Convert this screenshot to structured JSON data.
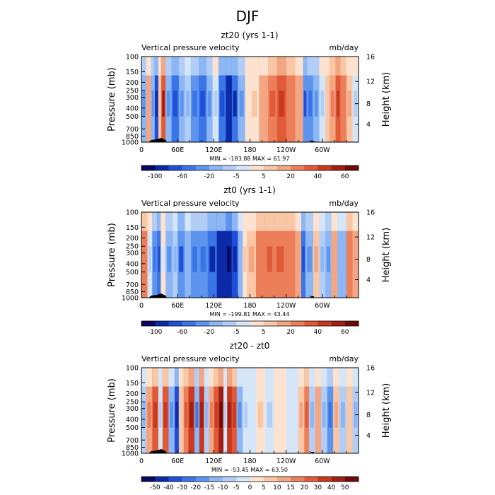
{
  "main_title": "DJF",
  "chart_data": [
    {
      "type": "heatmap",
      "title": "zt20 (yrs 1-1)",
      "left_label": "Vertical pressure velocity",
      "units": "mb/day",
      "ylabel": "Pressure (mb)",
      "y2label": "Height (km)",
      "yticks": [
        "100",
        "150",
        "200",
        "250",
        "300",
        "400",
        "500",
        "700",
        "850",
        "1000"
      ],
      "y2ticks": [
        "16",
        "12",
        "8",
        "4"
      ],
      "xticks": [
        "0",
        "60E",
        "120E",
        "180",
        "120W",
        "60W"
      ],
      "stats": "MIN = -183.88   MAX =  61.97",
      "colorbar_labels": [
        "-100",
        "-60",
        "-20",
        "-5",
        "5",
        "20",
        "40",
        "60"
      ],
      "colorbar_colors": [
        "#08085c",
        "#0c2aa8",
        "#1f4fd8",
        "#3a75e8",
        "#5d95ee",
        "#8cb6f4",
        "#b3cef6",
        "#d6e6f9",
        "#fde3cf",
        "#f9c6a6",
        "#f4a582",
        "#ec7e5a",
        "#e05a38",
        "#c9391f",
        "#a01e12",
        "#6d0a0a"
      ],
      "columns": [
        {
          "x0": 0,
          "x1": 8,
          "v": -30
        },
        {
          "x0": 8,
          "x1": 16,
          "v": 12
        },
        {
          "x0": 16,
          "x1": 22,
          "v": -40
        },
        {
          "x0": 22,
          "x1": 28,
          "v": -90
        },
        {
          "x0": 28,
          "x1": 33,
          "v": 5
        },
        {
          "x0": 33,
          "x1": 40,
          "v": 38
        },
        {
          "x0": 40,
          "x1": 50,
          "v": -30
        },
        {
          "x0": 50,
          "x1": 62,
          "v": -65
        },
        {
          "x0": 62,
          "x1": 72,
          "v": -35
        },
        {
          "x0": 72,
          "x1": 82,
          "v": -15
        },
        {
          "x0": 82,
          "x1": 95,
          "v": -45
        },
        {
          "x0": 95,
          "x1": 108,
          "v": -70
        },
        {
          "x0": 108,
          "x1": 118,
          "v": -40
        },
        {
          "x0": 118,
          "x1": 128,
          "v": -8
        },
        {
          "x0": 128,
          "x1": 140,
          "v": -70
        },
        {
          "x0": 140,
          "x1": 150,
          "v": -110
        },
        {
          "x0": 150,
          "x1": 160,
          "v": -80
        },
        {
          "x0": 160,
          "x1": 172,
          "v": -30
        },
        {
          "x0": 172,
          "x1": 180,
          "v": 3
        },
        {
          "x0": 180,
          "x1": 195,
          "v": 4
        },
        {
          "x0": 195,
          "x1": 210,
          "v": 12
        },
        {
          "x0": 210,
          "x1": 225,
          "v": 25
        },
        {
          "x0": 225,
          "x1": 240,
          "v": 30
        },
        {
          "x0": 240,
          "x1": 255,
          "v": 22
        },
        {
          "x0": 255,
          "x1": 268,
          "v": 10
        },
        {
          "x0": 268,
          "x1": 275,
          "v": -60
        },
        {
          "x0": 275,
          "x1": 285,
          "v": -50
        },
        {
          "x0": 285,
          "x1": 295,
          "v": -35
        },
        {
          "x0": 295,
          "x1": 305,
          "v": -10
        },
        {
          "x0": 305,
          "x1": 312,
          "v": 5
        },
        {
          "x0": 312,
          "x1": 322,
          "v": 15
        },
        {
          "x0": 322,
          "x1": 330,
          "v": 35
        },
        {
          "x0": 330,
          "x1": 340,
          "v": 22
        },
        {
          "x0": 340,
          "x1": 350,
          "v": 8
        },
        {
          "x0": 350,
          "x1": 360,
          "v": -10
        }
      ]
    },
    {
      "type": "heatmap",
      "title": "zt0 (yrs 1-1)",
      "left_label": "Vertical pressure velocity",
      "units": "mb/day",
      "ylabel": "Pressure (mb)",
      "y2label": "Height (km)",
      "yticks": [
        "100",
        "150",
        "200",
        "250",
        "300",
        "400",
        "500",
        "700",
        "850",
        "1000"
      ],
      "y2ticks": [
        "16",
        "12",
        "8",
        "4"
      ],
      "xticks": [
        "0",
        "60E",
        "120E",
        "180",
        "120W",
        "60W"
      ],
      "stats": "MIN = -199.81   MAX =  43.44",
      "colorbar_labels": [
        "-100",
        "-60",
        "-20",
        "-5",
        "5",
        "20",
        "40",
        "60"
      ],
      "colorbar_colors": [
        "#08085c",
        "#0c2aa8",
        "#1f4fd8",
        "#3a75e8",
        "#5d95ee",
        "#8cb6f4",
        "#b3cef6",
        "#d6e6f9",
        "#fde3cf",
        "#f9c6a6",
        "#f4a582",
        "#ec7e5a",
        "#e05a38",
        "#c9391f",
        "#a01e12",
        "#6d0a0a"
      ],
      "columns": [
        {
          "x0": 0,
          "x1": 10,
          "v": 20
        },
        {
          "x0": 10,
          "x1": 18,
          "v": -10
        },
        {
          "x0": 18,
          "x1": 26,
          "v": -45
        },
        {
          "x0": 26,
          "x1": 32,
          "v": -70
        },
        {
          "x0": 32,
          "x1": 40,
          "v": -5
        },
        {
          "x0": 40,
          "x1": 52,
          "v": -30
        },
        {
          "x0": 52,
          "x1": 60,
          "v": -15
        },
        {
          "x0": 60,
          "x1": 72,
          "v": -60
        },
        {
          "x0": 72,
          "x1": 82,
          "v": -25
        },
        {
          "x0": 82,
          "x1": 95,
          "v": -55
        },
        {
          "x0": 95,
          "x1": 110,
          "v": -45
        },
        {
          "x0": 110,
          "x1": 125,
          "v": -75
        },
        {
          "x0": 125,
          "x1": 140,
          "v": -110
        },
        {
          "x0": 140,
          "x1": 150,
          "v": -120
        },
        {
          "x0": 150,
          "x1": 160,
          "v": -85
        },
        {
          "x0": 160,
          "x1": 168,
          "v": -25
        },
        {
          "x0": 168,
          "x1": 175,
          "v": 4
        },
        {
          "x0": 175,
          "x1": 190,
          "v": 8
        },
        {
          "x0": 190,
          "x1": 205,
          "v": 22
        },
        {
          "x0": 205,
          "x1": 220,
          "v": 28
        },
        {
          "x0": 220,
          "x1": 240,
          "v": 26
        },
        {
          "x0": 240,
          "x1": 255,
          "v": 20
        },
        {
          "x0": 255,
          "x1": 265,
          "v": 10
        },
        {
          "x0": 265,
          "x1": 272,
          "v": -65
        },
        {
          "x0": 272,
          "x1": 285,
          "v": -35
        },
        {
          "x0": 285,
          "x1": 295,
          "v": 8
        },
        {
          "x0": 295,
          "x1": 305,
          "v": -20
        },
        {
          "x0": 305,
          "x1": 315,
          "v": -30
        },
        {
          "x0": 315,
          "x1": 325,
          "v": 10
        },
        {
          "x0": 325,
          "x1": 340,
          "v": -25
        },
        {
          "x0": 340,
          "x1": 350,
          "v": 20
        },
        {
          "x0": 350,
          "x1": 360,
          "v": 12
        }
      ]
    },
    {
      "type": "heatmap",
      "title": "zt20 - zt0",
      "left_label": "Vertical pressure velocity",
      "units": "mb/day",
      "ylabel": "Pressure (mb)",
      "y2label": "Height (km)",
      "yticks": [
        "100",
        "150",
        "200",
        "250",
        "300",
        "400",
        "500",
        "700",
        "850",
        "1000"
      ],
      "y2ticks": [
        "16",
        "12",
        "8",
        "4"
      ],
      "xticks": [
        "0",
        "60E",
        "120E",
        "180",
        "120W",
        "60W"
      ],
      "stats": "MIN = -53.45   MAX =  63.50",
      "colorbar_labels": [
        "-50",
        "-40",
        "-30",
        "-20",
        "-15",
        "-10",
        "-5",
        "0",
        "5",
        "10",
        "15",
        "20",
        "30",
        "40",
        "50"
      ],
      "colorbar_colors": [
        "#08085c",
        "#0c2aa8",
        "#1f4fd8",
        "#3a75e8",
        "#5d95ee",
        "#8cb6f4",
        "#b3cef6",
        "#d6e6f9",
        "#fde3cf",
        "#f9c6a6",
        "#f4a582",
        "#ec7e5a",
        "#e05a38",
        "#c9391f",
        "#a01e12",
        "#6d0a0a"
      ],
      "columns": [
        {
          "x0": 0,
          "x1": 8,
          "v": -10
        },
        {
          "x0": 8,
          "x1": 18,
          "v": 12
        },
        {
          "x0": 18,
          "x1": 28,
          "v": 28
        },
        {
          "x0": 28,
          "x1": 35,
          "v": -5
        },
        {
          "x0": 35,
          "x1": 45,
          "v": 25
        },
        {
          "x0": 45,
          "x1": 55,
          "v": -12
        },
        {
          "x0": 55,
          "x1": 62,
          "v": -35
        },
        {
          "x0": 62,
          "x1": 70,
          "v": 5
        },
        {
          "x0": 70,
          "x1": 78,
          "v": 18
        },
        {
          "x0": 78,
          "x1": 88,
          "v": 32
        },
        {
          "x0": 88,
          "x1": 96,
          "v": -15
        },
        {
          "x0": 96,
          "x1": 104,
          "v": 30
        },
        {
          "x0": 104,
          "x1": 112,
          "v": -8
        },
        {
          "x0": 112,
          "x1": 120,
          "v": 12
        },
        {
          "x0": 120,
          "x1": 128,
          "v": 28
        },
        {
          "x0": 128,
          "x1": 136,
          "v": 40
        },
        {
          "x0": 136,
          "x1": 142,
          "v": -5
        },
        {
          "x0": 142,
          "x1": 150,
          "v": 35
        },
        {
          "x0": 150,
          "x1": 158,
          "v": 25
        },
        {
          "x0": 158,
          "x1": 168,
          "v": -12
        },
        {
          "x0": 168,
          "x1": 178,
          "v": -5
        },
        {
          "x0": 178,
          "x1": 190,
          "v": -3
        },
        {
          "x0": 190,
          "x1": 205,
          "v": 4
        },
        {
          "x0": 205,
          "x1": 220,
          "v": -4
        },
        {
          "x0": 220,
          "x1": 240,
          "v": 3
        },
        {
          "x0": 240,
          "x1": 260,
          "v": -3
        },
        {
          "x0": 260,
          "x1": 270,
          "v": 8
        },
        {
          "x0": 270,
          "x1": 278,
          "v": 15
        },
        {
          "x0": 278,
          "x1": 288,
          "v": -8
        },
        {
          "x0": 288,
          "x1": 298,
          "v": 10
        },
        {
          "x0": 298,
          "x1": 308,
          "v": -10
        },
        {
          "x0": 308,
          "x1": 318,
          "v": -18
        },
        {
          "x0": 318,
          "x1": 328,
          "v": 8
        },
        {
          "x0": 328,
          "x1": 340,
          "v": -10
        },
        {
          "x0": 340,
          "x1": 350,
          "v": 5
        },
        {
          "x0": 350,
          "x1": 360,
          "v": -8
        }
      ]
    }
  ]
}
